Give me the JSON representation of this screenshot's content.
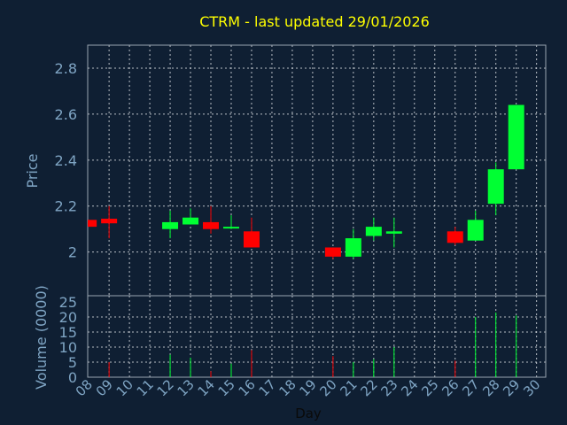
{
  "chart_data": {
    "type": "candlestick",
    "title": "CTRM - last updated 29/01/2026",
    "xlabel": "Day",
    "price_ylabel": "Price",
    "volume_ylabel": "Volume (0000)",
    "x_tick_labels": [
      "08",
      "09",
      "10",
      "11",
      "12",
      "13",
      "14",
      "15",
      "16",
      "17",
      "18",
      "19",
      "20",
      "21",
      "22",
      "23",
      "24",
      "25",
      "26",
      "27",
      "28",
      "29",
      "30"
    ],
    "price_yticks": [
      "2",
      "2.2",
      "2.4",
      "2.6",
      "2.8"
    ],
    "price_ylim": [
      1.81,
      2.9
    ],
    "volume_yticks": [
      "0",
      "5",
      "10",
      "15",
      "20",
      "25"
    ],
    "volume_ylim": [
      0,
      25
    ],
    "colors": {
      "up": "#00ff33",
      "down": "#ff0000",
      "title": "#ffff00",
      "axis_text": "#7fa5c4",
      "background": "#0f1f33"
    },
    "candles": [
      {
        "day": "08",
        "open": 2.14,
        "high": 2.14,
        "low": 2.11,
        "close": 2.11,
        "volume": 0
      },
      {
        "day": "09",
        "open": 2.145,
        "high": 2.2,
        "low": 2.06,
        "close": 2.125,
        "volume": 5.0
      },
      {
        "day": "12",
        "open": 2.1,
        "high": 2.18,
        "low": 2.06,
        "close": 2.13,
        "volume": 7.5
      },
      {
        "day": "13",
        "open": 2.12,
        "high": 2.19,
        "low": 2.12,
        "close": 2.15,
        "volume": 6.5
      },
      {
        "day": "14",
        "open": 2.13,
        "high": 2.2,
        "low": 2.08,
        "close": 2.1,
        "volume": 2.0
      },
      {
        "day": "15",
        "open": 2.105,
        "high": 2.16,
        "low": 2.1,
        "close": 2.11,
        "volume": 4.5
      },
      {
        "day": "16",
        "open": 2.09,
        "high": 2.15,
        "low": 2.02,
        "close": 2.02,
        "volume": 9.0
      },
      {
        "day": "20",
        "open": 2.02,
        "high": 2.02,
        "low": 1.97,
        "close": 1.98,
        "volume": 7.0
      },
      {
        "day": "21",
        "open": 1.98,
        "high": 2.1,
        "low": 1.97,
        "close": 2.06,
        "volume": 5.0
      },
      {
        "day": "22",
        "open": 2.07,
        "high": 2.15,
        "low": 2.05,
        "close": 2.11,
        "volume": 6.0
      },
      {
        "day": "23",
        "open": 2.08,
        "high": 2.15,
        "low": 2.02,
        "close": 2.09,
        "volume": 10.0
      },
      {
        "day": "26",
        "open": 2.09,
        "high": 2.11,
        "low": 2.03,
        "close": 2.04,
        "volume": 5.5
      },
      {
        "day": "27",
        "open": 2.05,
        "high": 2.18,
        "low": 2.05,
        "close": 2.14,
        "volume": 20.0
      },
      {
        "day": "28",
        "open": 2.21,
        "high": 2.39,
        "low": 2.16,
        "close": 2.36,
        "volume": 21.5
      },
      {
        "day": "29",
        "open": 2.36,
        "high": 2.64,
        "low": 2.36,
        "close": 2.64,
        "volume": 20.5
      }
    ]
  }
}
